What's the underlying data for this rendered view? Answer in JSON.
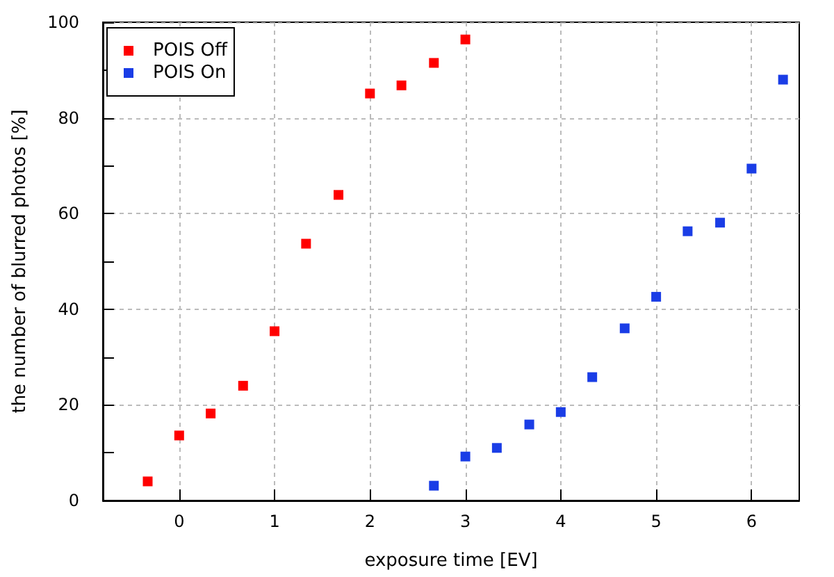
{
  "chart_data": {
    "type": "scatter",
    "xlabel": "exposure time [EV]",
    "ylabel": "the number of blurred photos [%]",
    "series": [
      {
        "name": "POIS Off",
        "color": "#ff0000",
        "x": [
          -0.33,
          0,
          0.33,
          0.67,
          1,
          1.33,
          1.67,
          2,
          2.33,
          2.67,
          3
        ],
        "values": [
          4.0,
          13.6,
          18.2,
          24.0,
          35.4,
          53.7,
          63.9,
          85.1,
          86.8,
          91.5,
          96.4
        ]
      },
      {
        "name": "POIS On",
        "color": "#1a3de6",
        "x": [
          2.67,
          3,
          3.33,
          3.67,
          4,
          4.33,
          4.67,
          5,
          5.33,
          5.67,
          6,
          6.33
        ],
        "values": [
          3.1,
          9.2,
          11.0,
          15.9,
          18.5,
          25.8,
          36.0,
          42.6,
          56.3,
          58.1,
          69.4,
          88.0
        ]
      }
    ],
    "xlim": [
      -0.8,
      6.5
    ],
    "ylim": [
      0,
      100
    ],
    "xticks": [
      0,
      1,
      2,
      3,
      4,
      5,
      6
    ],
    "yticks": [
      0,
      {
        "value": 10,
        "label": null
      },
      20,
      {
        "value": 30,
        "label": null
      },
      40,
      {
        "value": 50,
        "label": null
      },
      60,
      {
        "value": 70,
        "label": null
      },
      80,
      {
        "value": 90,
        "label": null
      },
      100
    ],
    "grid": true,
    "legend": "top left",
    "marker": "square"
  }
}
